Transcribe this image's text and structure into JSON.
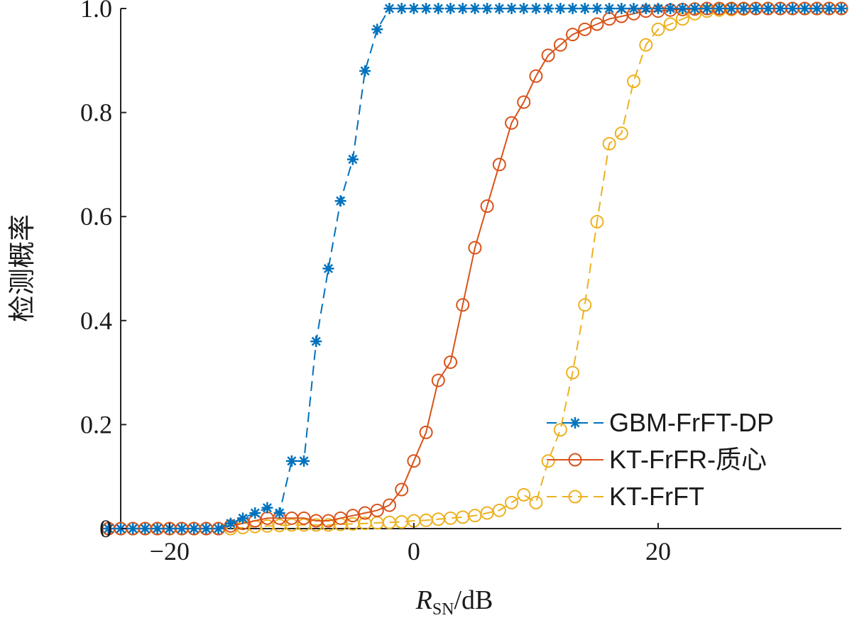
{
  "chart_data": {
    "type": "line",
    "xlabel": {
      "italic": "R",
      "subscript": "SN",
      "unit": "/dB"
    },
    "ylabel": "检测概率",
    "xlim": [
      -24,
      35
    ],
    "ylim": [
      0,
      1
    ],
    "xticks": [
      -20,
      0,
      20
    ],
    "xtick_labels": [
      "−20",
      "0",
      "20"
    ],
    "yticks": [
      0,
      0.2,
      0.4,
      0.6,
      0.8,
      1.0
    ],
    "ytick_labels": [
      "0",
      "0.2",
      "0.4",
      "0.6",
      "0.8",
      "1.0"
    ],
    "grid": false,
    "legend_position": "lower-right",
    "x": [
      -25,
      -24,
      -23,
      -22,
      -21,
      -20,
      -19,
      -18,
      -17,
      -16,
      -15,
      -14,
      -13,
      -12,
      -11,
      -10,
      -9,
      -8,
      -7,
      -6,
      -5,
      -4,
      -3,
      -2,
      -1,
      0,
      1,
      2,
      3,
      4,
      5,
      6,
      7,
      8,
      9,
      10,
      11,
      12,
      13,
      14,
      15,
      16,
      17,
      18,
      19,
      20,
      21,
      22,
      23,
      24,
      25,
      26,
      27,
      28,
      29,
      30,
      31,
      32,
      33,
      34,
      35
    ],
    "series": [
      {
        "name": "GBM-FrFT-DP",
        "color": "#0072BD",
        "line_style": "dashed",
        "marker": "star",
        "values": [
          0,
          0,
          0,
          0,
          0,
          0,
          0,
          0,
          0,
          0,
          0.01,
          0.02,
          0.03,
          0.04,
          0.03,
          0.13,
          0.13,
          0.36,
          0.5,
          0.63,
          0.71,
          0.88,
          0.96,
          1.0,
          1.0,
          1.0,
          1.0,
          1.0,
          1.0,
          1.0,
          1.0,
          1.0,
          1.0,
          1.0,
          1.0,
          1.0,
          1.0,
          1.0,
          1.0,
          1.0,
          1.0,
          1.0,
          1.0,
          1.0,
          1.0,
          1.0,
          1.0,
          1.0,
          1.0,
          1.0,
          1.0,
          1.0,
          1.0,
          1.0,
          1.0,
          1.0,
          1.0,
          1.0,
          1.0,
          1.0,
          1.0
        ]
      },
      {
        "name": "KT-FrFR-质心",
        "color": "#D95319",
        "line_style": "solid",
        "marker": "circle",
        "values": [
          0,
          0,
          0,
          0,
          0,
          0,
          0,
          0,
          0,
          0,
          0.005,
          0.01,
          0.015,
          0.02,
          0.02,
          0.02,
          0.02,
          0.015,
          0.015,
          0.02,
          0.025,
          0.03,
          0.035,
          0.045,
          0.075,
          0.13,
          0.185,
          0.285,
          0.32,
          0.43,
          0.54,
          0.62,
          0.7,
          0.78,
          0.82,
          0.87,
          0.91,
          0.93,
          0.95,
          0.96,
          0.97,
          0.98,
          0.985,
          0.99,
          0.995,
          0.995,
          0.997,
          0.998,
          0.999,
          1.0,
          1.0,
          1.0,
          1.0,
          1.0,
          1.0,
          1.0,
          1.0,
          1.0,
          1.0,
          1.0,
          1.0
        ]
      },
      {
        "name": "KT-FrFT",
        "color": "#EDB120",
        "line_style": "dashed",
        "marker": "circle",
        "values": [
          0,
          0,
          0,
          0,
          0,
          0,
          0,
          0,
          0,
          0,
          0,
          0.002,
          0.004,
          0.005,
          0.006,
          0.007,
          0.007,
          0.007,
          0.007,
          0.008,
          0.009,
          0.01,
          0.011,
          0.012,
          0.013,
          0.015,
          0.016,
          0.018,
          0.02,
          0.022,
          0.025,
          0.03,
          0.035,
          0.05,
          0.065,
          0.05,
          0.13,
          0.19,
          0.3,
          0.43,
          0.59,
          0.74,
          0.76,
          0.86,
          0.93,
          0.96,
          0.97,
          0.98,
          0.99,
          0.995,
          0.997,
          0.998,
          0.999,
          1.0,
          1.0,
          1.0,
          1.0,
          1.0,
          1.0,
          1.0,
          1.0
        ]
      }
    ]
  }
}
